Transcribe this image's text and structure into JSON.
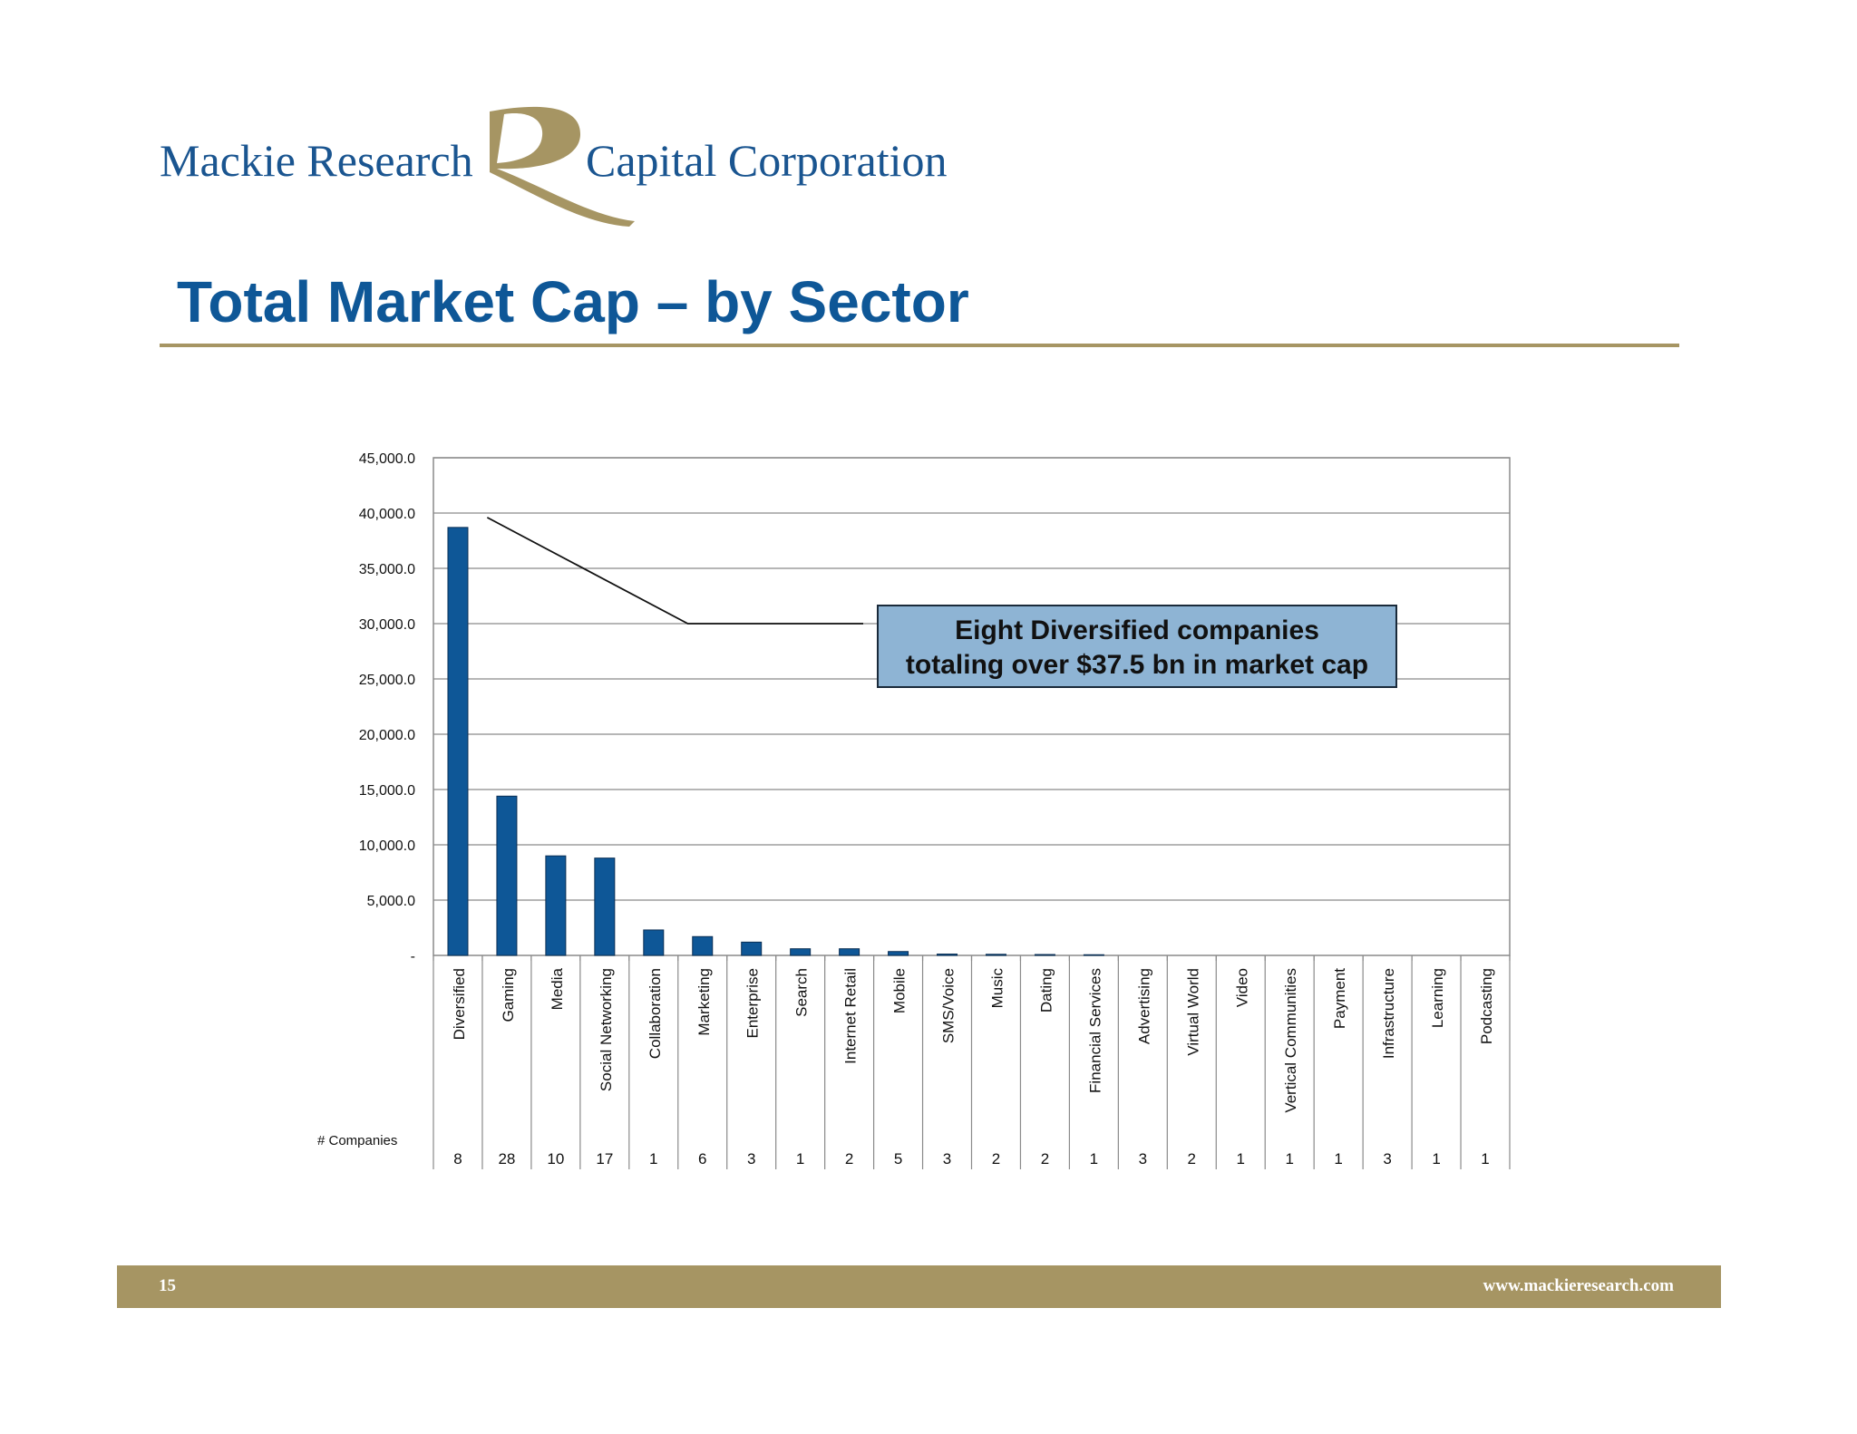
{
  "header": {
    "brand_left": "Mackie Research",
    "brand_right": "Capital Corporation",
    "title": "Total Market Cap – by Sector"
  },
  "callout": {
    "line1": "Eight Diversified companies",
    "line2": "totaling over $37.5 bn in market cap"
  },
  "footer": {
    "page_number": "15",
    "url": "www.mackieresearch.com"
  },
  "colors": {
    "brand_blue": "#1a5590",
    "title_blue": "#0e5797",
    "gold": "#a69563",
    "bar": "#0e5797",
    "callout_fill": "#8eb4d4"
  },
  "chart_data": {
    "type": "bar",
    "title": "",
    "xlabel": "",
    "ylabel": "",
    "ylim": [
      0,
      45000
    ],
    "yticks": [
      0,
      5000,
      10000,
      15000,
      20000,
      25000,
      30000,
      35000,
      40000,
      45000
    ],
    "ytick_labels": [
      "-",
      "5,000.0",
      "10,000.0",
      "15,000.0",
      "20,000.0",
      "25,000.0",
      "30,000.0",
      "35,000.0",
      "40,000.0",
      "45,000.0"
    ],
    "grid": true,
    "categories": [
      "Diversified",
      "Gaming",
      "Media",
      "Social Networking",
      "Collaboration",
      "Marketing",
      "Enterprise",
      "Search",
      "Internet Retail",
      "Mobile",
      "SMS/Voice",
      "Music",
      "Dating",
      "Financial Services",
      "Advertising",
      "Virtual World",
      "Video",
      "Vertical Communities",
      "Payment",
      "Infrastructure",
      "Learning",
      "Podcasting"
    ],
    "values": [
      38700,
      14400,
      9000,
      8800,
      2300,
      1700,
      1200,
      600,
      600,
      350,
      120,
      100,
      80,
      60,
      0,
      0,
      0,
      0,
      0,
      0,
      0,
      0
    ],
    "table_row_label": "# Companies",
    "companies": [
      "8",
      "28",
      "10",
      "17",
      "1",
      "6",
      "3",
      "1",
      "2",
      "5",
      "3",
      "2",
      "2",
      "1",
      "3",
      "2",
      "1",
      "1",
      "1",
      "3",
      "1",
      "1"
    ]
  }
}
